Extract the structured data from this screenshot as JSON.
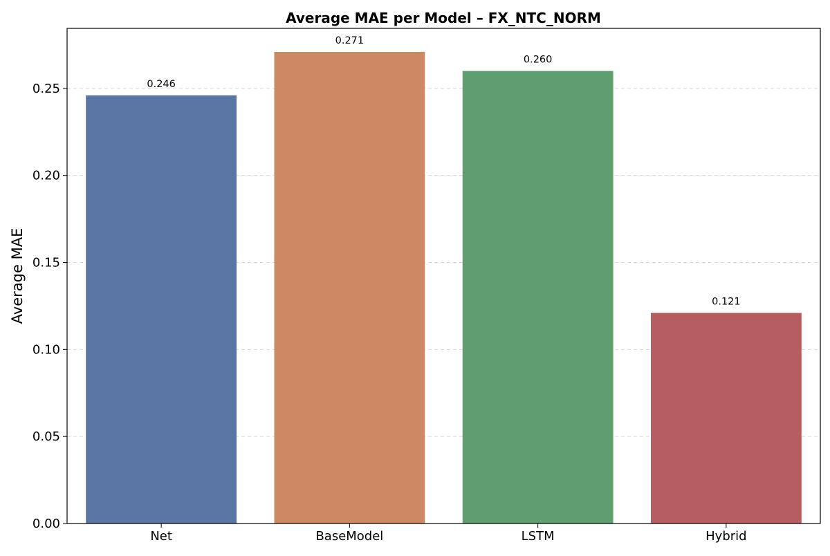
{
  "chart_data": {
    "type": "bar",
    "title": "Average MAE per Model – FX_NTC_NORM",
    "xlabel": "",
    "ylabel": "Average MAE",
    "categories": [
      "Net",
      "BaseModel",
      "LSTM",
      "Hybrid"
    ],
    "values": [
      0.246,
      0.271,
      0.26,
      0.121
    ],
    "value_labels": [
      "0.246",
      "0.271",
      "0.260",
      "0.121"
    ],
    "colors": [
      "#5975a4",
      "#cc8963",
      "#5f9e6e",
      "#b55d60"
    ],
    "ylim": [
      0,
      0.2845
    ],
    "yticks": [
      0.0,
      0.05,
      0.1,
      0.15,
      0.2,
      0.25
    ],
    "ytick_labels": [
      "0.00",
      "0.05",
      "0.10",
      "0.15",
      "0.20",
      "0.25"
    ],
    "grid": "y-dashed",
    "legend": "none"
  }
}
